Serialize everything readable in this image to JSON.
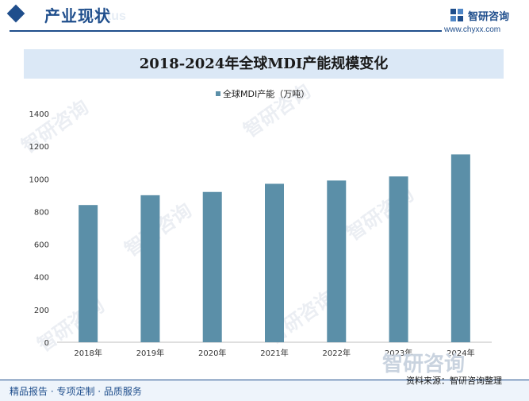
{
  "header": {
    "section_title": "产业现状",
    "section_title_en": "Status",
    "brand_name": "智研咨询",
    "brand_url": "www.chyxx.com"
  },
  "chart_data": {
    "type": "bar",
    "title": "2018-2024年全球MDI产能规模变化",
    "categories": [
      "2018年",
      "2019年",
      "2020年",
      "2021年",
      "2022年",
      "2023年",
      "2024年"
    ],
    "series": [
      {
        "name": "全球MDI产能（万吨）",
        "values": [
          840,
          900,
          920,
          970,
          990,
          1015,
          1150
        ],
        "color": "#5b8fa8"
      }
    ],
    "ylim": [
      0,
      1400
    ],
    "yticks": [
      0,
      200,
      400,
      600,
      800,
      1000,
      1200,
      1400
    ],
    "legend_position": "top",
    "grid": false,
    "xlabel": "",
    "ylabel": ""
  },
  "watermark": {
    "text": "智研咨询"
  },
  "footer": {
    "tagline": "精品报告 · 专项定制 · 品质服务",
    "source": "资料来源：智研咨询整理"
  }
}
